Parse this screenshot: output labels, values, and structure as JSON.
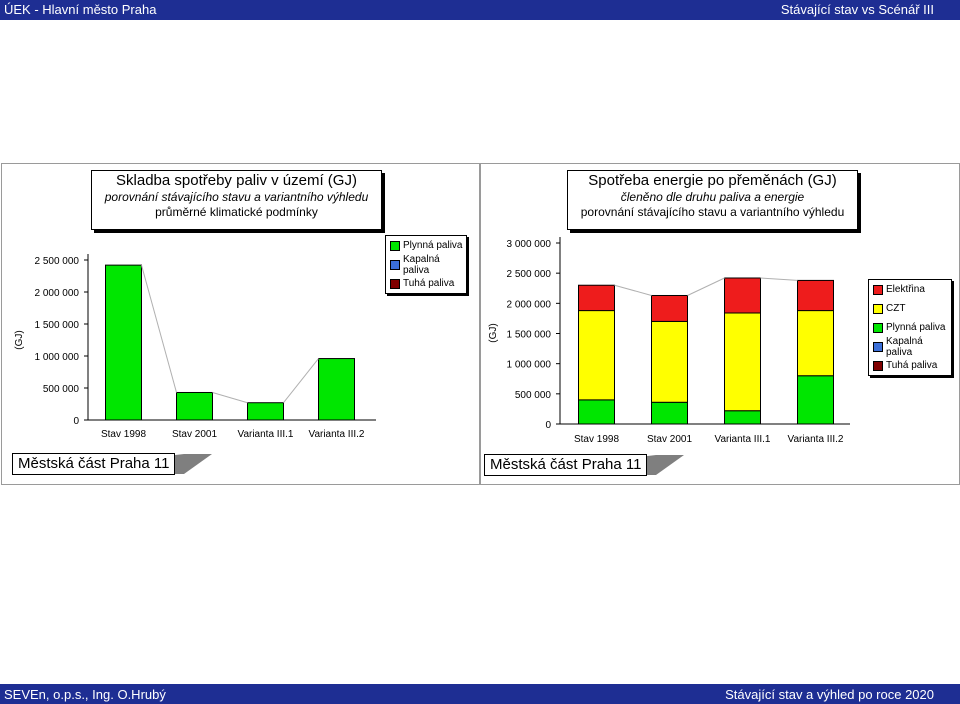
{
  "header": {
    "left": "ÚEK - Hlavní město Praha",
    "right": "Stávající stav vs Scénář III"
  },
  "footer": {
    "left": "SEVEn, o.p.s., Ing. O.Hrubý",
    "right": "Stávající stav a výhled po roce 2020"
  },
  "left_panel": {
    "title": "Skladba spotřeby paliv v území (GJ)",
    "subtitle1": "porovnání stávajícího stavu a variantního výhledu",
    "subtitle2": "průměrné klimatické podmínky",
    "caption": "Městská část Praha 11",
    "legend": [
      {
        "label": "Plynná paliva",
        "color": "#00e600"
      },
      {
        "label": "Kapalná paliva",
        "color": "#3b6fd8"
      },
      {
        "label": "Tuhá paliva",
        "color": "#800000"
      }
    ]
  },
  "right_panel": {
    "title": "Spotřeba energie po přeměnách (GJ)",
    "subtitle1": "členěno dle druhu paliva a energie",
    "subtitle2": "porovnání stávajícího stavu a variantního výhledu",
    "caption": "Městská část Praha 11",
    "legend": [
      {
        "label": "Elektřina",
        "color": "#ee1c1c"
      },
      {
        "label": "CZT",
        "color": "#ffff00"
      },
      {
        "label": "Plynná paliva",
        "color": "#00e600"
      },
      {
        "label": "Kapalná paliva",
        "color": "#3b6fd8"
      },
      {
        "label": "Tuhá paliva",
        "color": "#800000"
      }
    ]
  },
  "chart_data": [
    {
      "type": "bar",
      "title": "Skladba spotřeby paliv v území (GJ)",
      "ylabel": "(GJ)",
      "categories": [
        "Stav 1998",
        "Stav 2001",
        "Varianta III.1",
        "Varianta III.2"
      ],
      "ylim": [
        0,
        2500000
      ],
      "yticks": [
        "0",
        "500 000",
        "1 000 000",
        "1 500 000",
        "2 000 000",
        "2 500 000"
      ],
      "series": [
        {
          "name": "Tuhá paliva",
          "color": "#800000",
          "values": [
            0,
            0,
            0,
            0
          ]
        },
        {
          "name": "Kapalná paliva",
          "color": "#3b6fd8",
          "values": [
            0,
            0,
            0,
            0
          ]
        },
        {
          "name": "Plynná paliva",
          "color": "#00e600",
          "values": [
            2420000,
            430000,
            270000,
            960000
          ]
        }
      ],
      "stacked": true,
      "grid": false,
      "legend": "top-right"
    },
    {
      "type": "bar",
      "title": "Spotřeba energie po přeměnách (GJ)",
      "ylabel": "(GJ)",
      "categories": [
        "Stav 1998",
        "Stav 2001",
        "Varianta III.1",
        "Varianta III.2"
      ],
      "ylim": [
        0,
        3000000
      ],
      "yticks": [
        "0",
        "500 000",
        "1 000 000",
        "1 500 000",
        "2 000 000",
        "2 500 000",
        "3 000 000"
      ],
      "series": [
        {
          "name": "Tuhá paliva",
          "color": "#800000",
          "values": [
            0,
            0,
            0,
            0
          ]
        },
        {
          "name": "Kapalná paliva",
          "color": "#3b6fd8",
          "values": [
            0,
            0,
            0,
            0
          ]
        },
        {
          "name": "Plynná paliva",
          "color": "#00e600",
          "values": [
            400000,
            360000,
            220000,
            800000
          ]
        },
        {
          "name": "CZT",
          "color": "#ffff00",
          "values": [
            1480000,
            1340000,
            1620000,
            1080000
          ]
        },
        {
          "name": "Elektřina",
          "color": "#ee1c1c",
          "values": [
            420000,
            430000,
            580000,
            500000
          ]
        }
      ],
      "stacked": true,
      "grid": false,
      "legend": "right"
    }
  ]
}
